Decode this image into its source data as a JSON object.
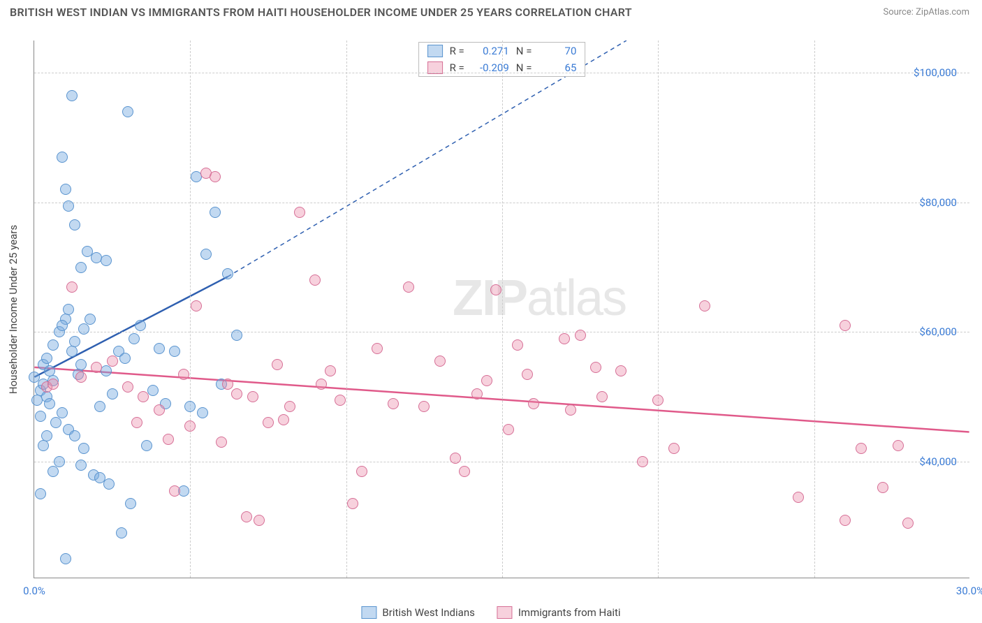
{
  "title": "BRITISH WEST INDIAN VS IMMIGRANTS FROM HAITI HOUSEHOLDER INCOME UNDER 25 YEARS CORRELATION CHART",
  "source": "Source: ZipAtlas.com",
  "y_axis_title": "Householder Income Under 25 years",
  "watermark_a": "ZIP",
  "watermark_b": "atlas",
  "chart": {
    "type": "scatter",
    "xlim": [
      0,
      30
    ],
    "ylim": [
      22000,
      105000
    ],
    "x_ticks": [
      0,
      30
    ],
    "x_tick_labels": [
      "0.0%",
      "30.0%"
    ],
    "y_ticks": [
      40000,
      60000,
      80000,
      100000
    ],
    "y_tick_labels": [
      "$40,000",
      "$60,000",
      "$80,000",
      "$100,000"
    ],
    "x_grid_at": [
      5,
      10,
      15,
      20,
      25
    ],
    "grid_color": "#cccccc",
    "background_color": "#ffffff",
    "axis_color": "#888888",
    "tick_label_color": "#3a7bd5",
    "point_radius": 8,
    "point_opacity": 0.55,
    "series": [
      {
        "name": "British West Indians",
        "color_fill": "rgba(120,170,225,0.45)",
        "color_stroke": "#5a94cf",
        "trend_color": "#2e5fb0",
        "R_label": "R =",
        "R": "0.271",
        "N_label": "N =",
        "N": "70",
        "trend": {
          "x1": 0,
          "y1": 53000,
          "x2_solid": 6.2,
          "y2_solid": 68500,
          "x2_dash": 19,
          "y2_dash": 105000
        },
        "points": [
          [
            0.0,
            53000
          ],
          [
            0.2,
            51000
          ],
          [
            0.1,
            49500
          ],
          [
            0.3,
            55000
          ],
          [
            0.4,
            50000
          ],
          [
            0.2,
            47000
          ],
          [
            0.3,
            52000
          ],
          [
            0.5,
            54000
          ],
          [
            0.4,
            56000
          ],
          [
            0.6,
            58000
          ],
          [
            0.8,
            60000
          ],
          [
            1.0,
            62000
          ],
          [
            1.1,
            63500
          ],
          [
            0.9,
            61000
          ],
          [
            1.3,
            58500
          ],
          [
            1.2,
            57000
          ],
          [
            1.5,
            55000
          ],
          [
            1.4,
            53500
          ],
          [
            1.6,
            60500
          ],
          [
            1.8,
            62000
          ],
          [
            1.1,
            79500
          ],
          [
            1.0,
            82000
          ],
          [
            1.3,
            76500
          ],
          [
            1.5,
            70000
          ],
          [
            1.7,
            72500
          ],
          [
            2.0,
            71500
          ],
          [
            2.3,
            71000
          ],
          [
            0.6,
            52500
          ],
          [
            0.5,
            49000
          ],
          [
            0.7,
            46000
          ],
          [
            0.9,
            47500
          ],
          [
            1.1,
            45000
          ],
          [
            1.3,
            44000
          ],
          [
            1.6,
            42000
          ],
          [
            0.8,
            40000
          ],
          [
            1.9,
            38000
          ],
          [
            2.1,
            37500
          ],
          [
            2.4,
            36500
          ],
          [
            1.5,
            39500
          ],
          [
            0.4,
            44000
          ],
          [
            0.3,
            42500
          ],
          [
            0.6,
            38500
          ],
          [
            0.2,
            35000
          ],
          [
            2.8,
            29000
          ],
          [
            1.0,
            25000
          ],
          [
            2.1,
            48500
          ],
          [
            2.5,
            50500
          ],
          [
            2.3,
            54000
          ],
          [
            2.7,
            57000
          ],
          [
            2.9,
            56000
          ],
          [
            3.2,
            59000
          ],
          [
            3.4,
            61000
          ],
          [
            3.0,
            94000
          ],
          [
            1.2,
            96500
          ],
          [
            0.9,
            87000
          ],
          [
            5.2,
            84000
          ],
          [
            6.2,
            69000
          ],
          [
            4.0,
            57500
          ],
          [
            4.5,
            57000
          ],
          [
            3.8,
            51000
          ],
          [
            4.2,
            49000
          ],
          [
            5.0,
            48500
          ],
          [
            5.4,
            47500
          ],
          [
            6.0,
            52000
          ],
          [
            6.5,
            59500
          ],
          [
            5.8,
            78500
          ],
          [
            5.5,
            72000
          ],
          [
            3.6,
            42500
          ],
          [
            4.8,
            35500
          ],
          [
            3.1,
            33500
          ]
        ]
      },
      {
        "name": "Immigrants from Haiti",
        "color_fill": "rgba(235,140,170,0.40)",
        "color_stroke": "#d66f96",
        "trend_color": "#e05a8a",
        "R_label": "R =",
        "R": "-0.209",
        "N_label": "N =",
        "N": "65",
        "trend": {
          "x1": 0,
          "y1": 54500,
          "x2_solid": 30,
          "y2_solid": 44500,
          "x2_dash": 30,
          "y2_dash": 44500
        },
        "points": [
          [
            0.4,
            51500
          ],
          [
            0.6,
            52000
          ],
          [
            1.2,
            67000
          ],
          [
            1.5,
            53000
          ],
          [
            2.0,
            54500
          ],
          [
            2.5,
            55500
          ],
          [
            3.0,
            51500
          ],
          [
            3.5,
            50000
          ],
          [
            4.0,
            48000
          ],
          [
            4.5,
            35500
          ],
          [
            4.8,
            53500
          ],
          [
            5.2,
            64000
          ],
          [
            5.5,
            84500
          ],
          [
            5.8,
            84000
          ],
          [
            6.2,
            52000
          ],
          [
            6.5,
            50500
          ],
          [
            6.8,
            31500
          ],
          [
            7.2,
            31000
          ],
          [
            7.5,
            46000
          ],
          [
            7.8,
            55000
          ],
          [
            8.2,
            48500
          ],
          [
            8.5,
            78500
          ],
          [
            9.0,
            68000
          ],
          [
            9.2,
            52000
          ],
          [
            9.5,
            54000
          ],
          [
            9.8,
            49500
          ],
          [
            10.2,
            33500
          ],
          [
            10.5,
            38500
          ],
          [
            11.0,
            57500
          ],
          [
            11.5,
            49000
          ],
          [
            12.0,
            67000
          ],
          [
            12.5,
            48500
          ],
          [
            13.0,
            55500
          ],
          [
            13.5,
            40500
          ],
          [
            13.8,
            38500
          ],
          [
            14.2,
            50500
          ],
          [
            14.5,
            52500
          ],
          [
            14.8,
            66500
          ],
          [
            15.2,
            45000
          ],
          [
            15.5,
            58000
          ],
          [
            15.8,
            53500
          ],
          [
            17.0,
            59000
          ],
          [
            17.5,
            59500
          ],
          [
            18.0,
            54500
          ],
          [
            18.2,
            50000
          ],
          [
            19.5,
            40000
          ],
          [
            20.0,
            49500
          ],
          [
            20.5,
            42000
          ],
          [
            21.5,
            64000
          ],
          [
            26.0,
            61000
          ],
          [
            24.5,
            34500
          ],
          [
            26.0,
            31000
          ],
          [
            26.5,
            42000
          ],
          [
            27.2,
            36000
          ],
          [
            28.0,
            30500
          ],
          [
            27.7,
            42500
          ],
          [
            16.0,
            49000
          ],
          [
            17.2,
            48000
          ],
          [
            18.8,
            54000
          ],
          [
            7.0,
            50000
          ],
          [
            8.0,
            46500
          ],
          [
            6.0,
            43000
          ],
          [
            5.0,
            45500
          ],
          [
            4.3,
            43500
          ],
          [
            3.3,
            46000
          ]
        ]
      }
    ]
  },
  "footer_legend": [
    {
      "label": "British West Indians",
      "fill": "rgba(120,170,225,0.45)",
      "stroke": "#5a94cf"
    },
    {
      "label": "Immigrants from Haiti",
      "fill": "rgba(235,140,170,0.40)",
      "stroke": "#d66f96"
    }
  ]
}
